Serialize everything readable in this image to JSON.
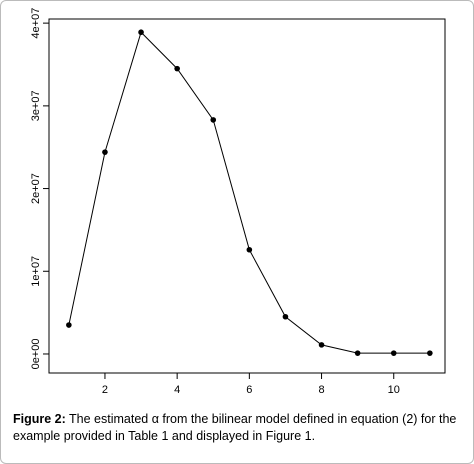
{
  "chart_data": {
    "type": "line",
    "x": [
      1,
      2,
      3,
      4,
      5,
      6,
      7,
      8,
      9,
      10,
      11
    ],
    "values": [
      3500000,
      24400000,
      38900000,
      34500000,
      28300000,
      12600000,
      4500000,
      1100000,
      100000,
      100000,
      100000
    ],
    "color": "#000000",
    "xlim": [
      0.45,
      11.42
    ],
    "xticks": [
      2,
      4,
      6,
      8,
      10
    ],
    "ylim": [
      -2300000,
      40500000
    ],
    "yticks": [
      {
        "value": 0,
        "label": "0e+00"
      },
      {
        "value": 10000000,
        "label": "1e+07"
      },
      {
        "value": 20000000,
        "label": "2e+07"
      },
      {
        "value": 30000000,
        "label": "3e+07"
      },
      {
        "value": 40000000,
        "label": "4e+07"
      }
    ]
  },
  "caption": {
    "label": "Figure 2:",
    "text": "The estimated α from the bilinear model defined in equation (2) for the example provided in Table 1 and displayed in Figure 1."
  }
}
